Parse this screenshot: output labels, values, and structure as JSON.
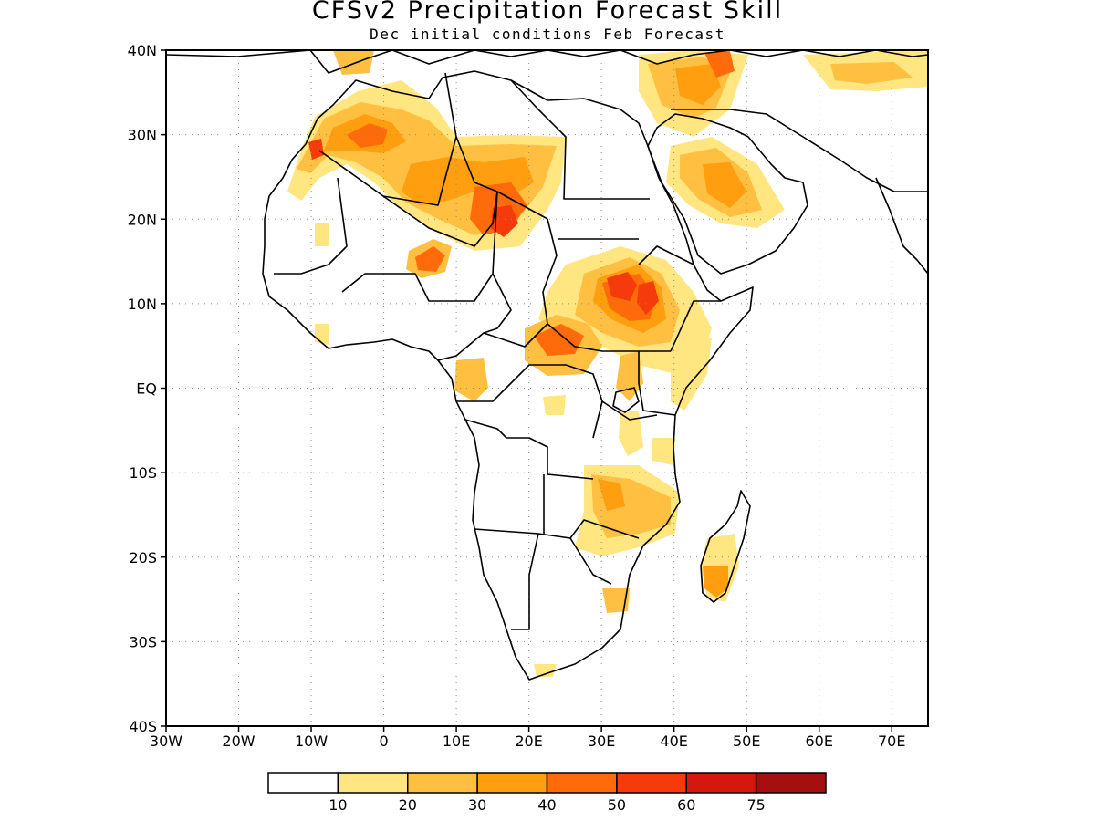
{
  "title": "CFSv2 Precipitation Forecast Skill",
  "subtitle": "Dec initial conditions  Feb Forecast",
  "map": {
    "region": "Africa",
    "lon_range": [
      -30,
      75
    ],
    "lat_range": [
      -40,
      40
    ],
    "grid": "dotted",
    "lon_ticks": [
      "30W",
      "20W",
      "10W",
      "0",
      "10E",
      "20E",
      "30E",
      "40E",
      "50E",
      "60E",
      "70E"
    ],
    "lat_ticks": [
      "40N",
      "30N",
      "20N",
      "10N",
      "EQ",
      "10S",
      "20S",
      "30S",
      "40S"
    ],
    "land_outline_color": "#000000"
  },
  "colorbar": {
    "labels": [
      "10",
      "20",
      "30",
      "40",
      "50",
      "60",
      "75"
    ],
    "colors": [
      "#ffffff",
      "#ffe680",
      "#ffbf40",
      "#ff9e0f",
      "#ff6a0a",
      "#f53a0c",
      "#d6170d",
      "#a50f0f"
    ]
  }
}
